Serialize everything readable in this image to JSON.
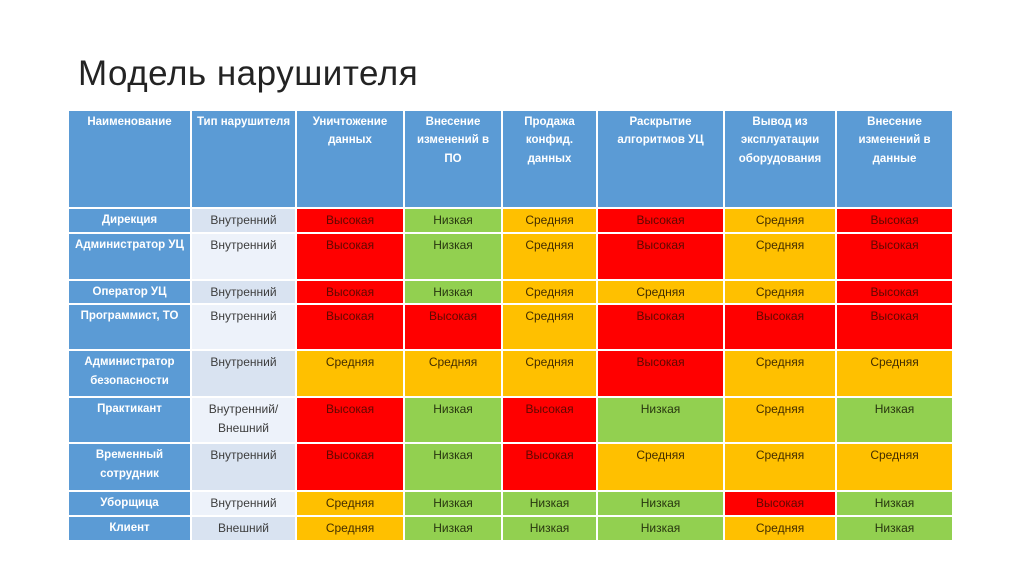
{
  "slide": {
    "title": "Модель нарушителя"
  },
  "table": {
    "columns": [
      "Наименование",
      "Тип нарушителя",
      "Уничтожение данных",
      "Внесение изменений в ПО",
      "Продажа конфид. данных",
      "Раскрытие алгоритмов УЦ",
      "Вывод из эксплуатации оборудования",
      "Внесение изменений в данные"
    ],
    "level_labels": {
      "high": "Высокая",
      "medium": "Средняя",
      "low": "Низкая"
    },
    "colors": {
      "header_fill": "#5B9BD5",
      "name_fill": "#5B9BD5",
      "band_dark": "#D9E3F1",
      "band_light": "#EDF2FA",
      "high": "#FF0000",
      "medium": "#FFC000",
      "low": "#92D050"
    },
    "rows": [
      {
        "name": "Дирекция",
        "type": "Внутренний",
        "values": [
          "high",
          "low",
          "medium",
          "high",
          "medium",
          "high"
        ]
      },
      {
        "name": "Администратор УЦ",
        "type": "Внутренний",
        "values": [
          "high",
          "low",
          "medium",
          "high",
          "medium",
          "high"
        ]
      },
      {
        "name": "Оператор УЦ",
        "type": "Внутренний",
        "values": [
          "high",
          "low",
          "medium",
          "medium",
          "medium",
          "high"
        ]
      },
      {
        "name": "Программист, ТО",
        "type": "Внутренний",
        "values": [
          "high",
          "high",
          "medium",
          "high",
          "high",
          "high"
        ]
      },
      {
        "name": "Администратор безопасности",
        "type": "Внутренний",
        "values": [
          "medium",
          "medium",
          "medium",
          "high",
          "medium",
          "medium"
        ]
      },
      {
        "name": "Практикант",
        "type": "Внутренний/\nВнешний",
        "values": [
          "high",
          "low",
          "high",
          "low",
          "medium",
          "low"
        ]
      },
      {
        "name": "Временный сотрудник",
        "type": "Внутренний",
        "values": [
          "high",
          "low",
          "high",
          "medium",
          "medium",
          "medium"
        ]
      },
      {
        "name": "Уборщица",
        "type": "Внутренний",
        "values": [
          "medium",
          "low",
          "low",
          "low",
          "high",
          "low"
        ]
      },
      {
        "name": "Клиент",
        "type": "Внешний",
        "values": [
          "medium",
          "low",
          "low",
          "low",
          "medium",
          "low"
        ]
      }
    ]
  }
}
